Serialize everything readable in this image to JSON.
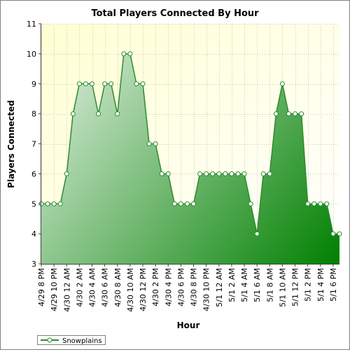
{
  "chart_data": {
    "type": "area",
    "title": "Total Players Connected By Hour",
    "xlabel": "Hour",
    "ylabel": "Players Connected",
    "ylim": [
      3,
      11
    ],
    "yticks": [
      3,
      4,
      5,
      6,
      7,
      8,
      9,
      10,
      11
    ],
    "grid": true,
    "legend_position": "bottom-left",
    "colors": {
      "plot_bg_top": "#ffffd2",
      "plot_bg_bottom": "#ffffff",
      "area_top": "#ecf5ec",
      "area_bottom": "#008000",
      "line": "#2d8b2d",
      "marker_fill": "#ffffff",
      "marker_stroke": "#2d8b2d",
      "grid": "#c8c8c8"
    },
    "tick_labels": [
      "4/29 8 PM",
      "4/29 10 PM",
      "4/30 12 AM",
      "4/30 2 AM",
      "4/30 4 AM",
      "4/30 6 AM",
      "4/30 8 AM",
      "4/30 10 AM",
      "4/30 12 PM",
      "4/30 2 PM",
      "4/30 4 PM",
      "4/30 6 PM",
      "4/30 8 PM",
      "4/30 10 PM",
      "5/1 12 AM",
      "5/1 2 AM",
      "5/1 4 AM",
      "5/1 6 AM",
      "5/1 8 AM",
      "5/1 10 AM",
      "5/1 12 PM",
      "5/1 2 PM",
      "5/1 4 PM",
      "5/1 6 PM"
    ],
    "series": [
      {
        "name": "Snowplains",
        "values": [
          5,
          5,
          5,
          5,
          6,
          8,
          9,
          9,
          9,
          8,
          9,
          9,
          8,
          10,
          10,
          9,
          9,
          7,
          7,
          6,
          6,
          5,
          5,
          5,
          5,
          6,
          6,
          6,
          6,
          6,
          6,
          6,
          6,
          5,
          4,
          6,
          6,
          8,
          9,
          8,
          8,
          8,
          5,
          5,
          5,
          5,
          4,
          4
        ]
      }
    ]
  }
}
